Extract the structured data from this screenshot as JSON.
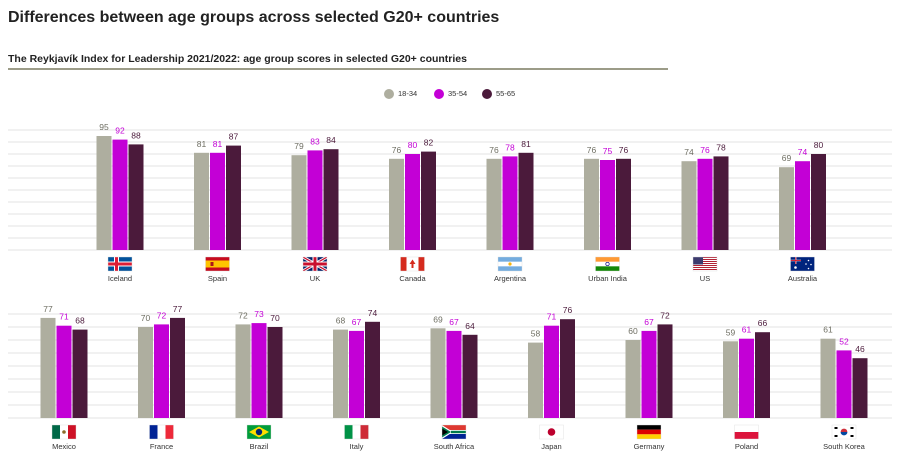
{
  "header": {
    "title": "Differences between age groups across selected G20+ countries",
    "subtitle": "The Reykjavík Index for Leadership 2021/2022: age group scores in selected G20+ countries"
  },
  "colors": {
    "18-34": "#aeae9f",
    "35-54": "#c300d6",
    "55-65": "#4b1a3b"
  },
  "chart_data": {
    "type": "bar",
    "title": "The Reykjavík Index for Leadership 2021/2022: age group scores in selected G20+ countries",
    "xlabel": "",
    "ylabel": "",
    "ylim": [
      0,
      100
    ],
    "legend": [
      "18-34",
      "35-54",
      "55-65"
    ],
    "legend_position": "top-center",
    "grid": true,
    "panels": [
      {
        "categories": [
          "Iceland",
          "Spain",
          "UK",
          "Canada",
          "Argentina",
          "Urban India",
          "US",
          "Australia"
        ],
        "flags": [
          "iceland",
          "spain",
          "uk",
          "canada",
          "argentina",
          "india",
          "us",
          "australia"
        ],
        "series": [
          {
            "name": "18-34",
            "values": [
              95,
              81,
              79,
              76,
              76,
              76,
              74,
              69
            ]
          },
          {
            "name": "35-54",
            "values": [
              92,
              81,
              83,
              80,
              78,
              75,
              76,
              74
            ]
          },
          {
            "name": "55-65",
            "values": [
              88,
              87,
              84,
              82,
              81,
              76,
              78,
              80
            ]
          }
        ]
      },
      {
        "categories": [
          "Mexico",
          "France",
          "Brazil",
          "Italy",
          "South Africa",
          "Japan",
          "Germany",
          "Poland",
          "South Korea"
        ],
        "flags": [
          "mexico",
          "france",
          "brazil",
          "italy",
          "south-africa",
          "japan",
          "germany",
          "poland",
          "south-korea"
        ],
        "series": [
          {
            "name": "18-34",
            "values": [
              77,
              70,
              72,
              68,
              69,
              58,
              60,
              59,
              61
            ]
          },
          {
            "name": "35-54",
            "values": [
              71,
              72,
              73,
              67,
              67,
              71,
              67,
              61,
              52
            ]
          },
          {
            "name": "55-65",
            "values": [
              68,
              77,
              70,
              74,
              64,
              76,
              72,
              66,
              46
            ]
          }
        ]
      }
    ]
  }
}
